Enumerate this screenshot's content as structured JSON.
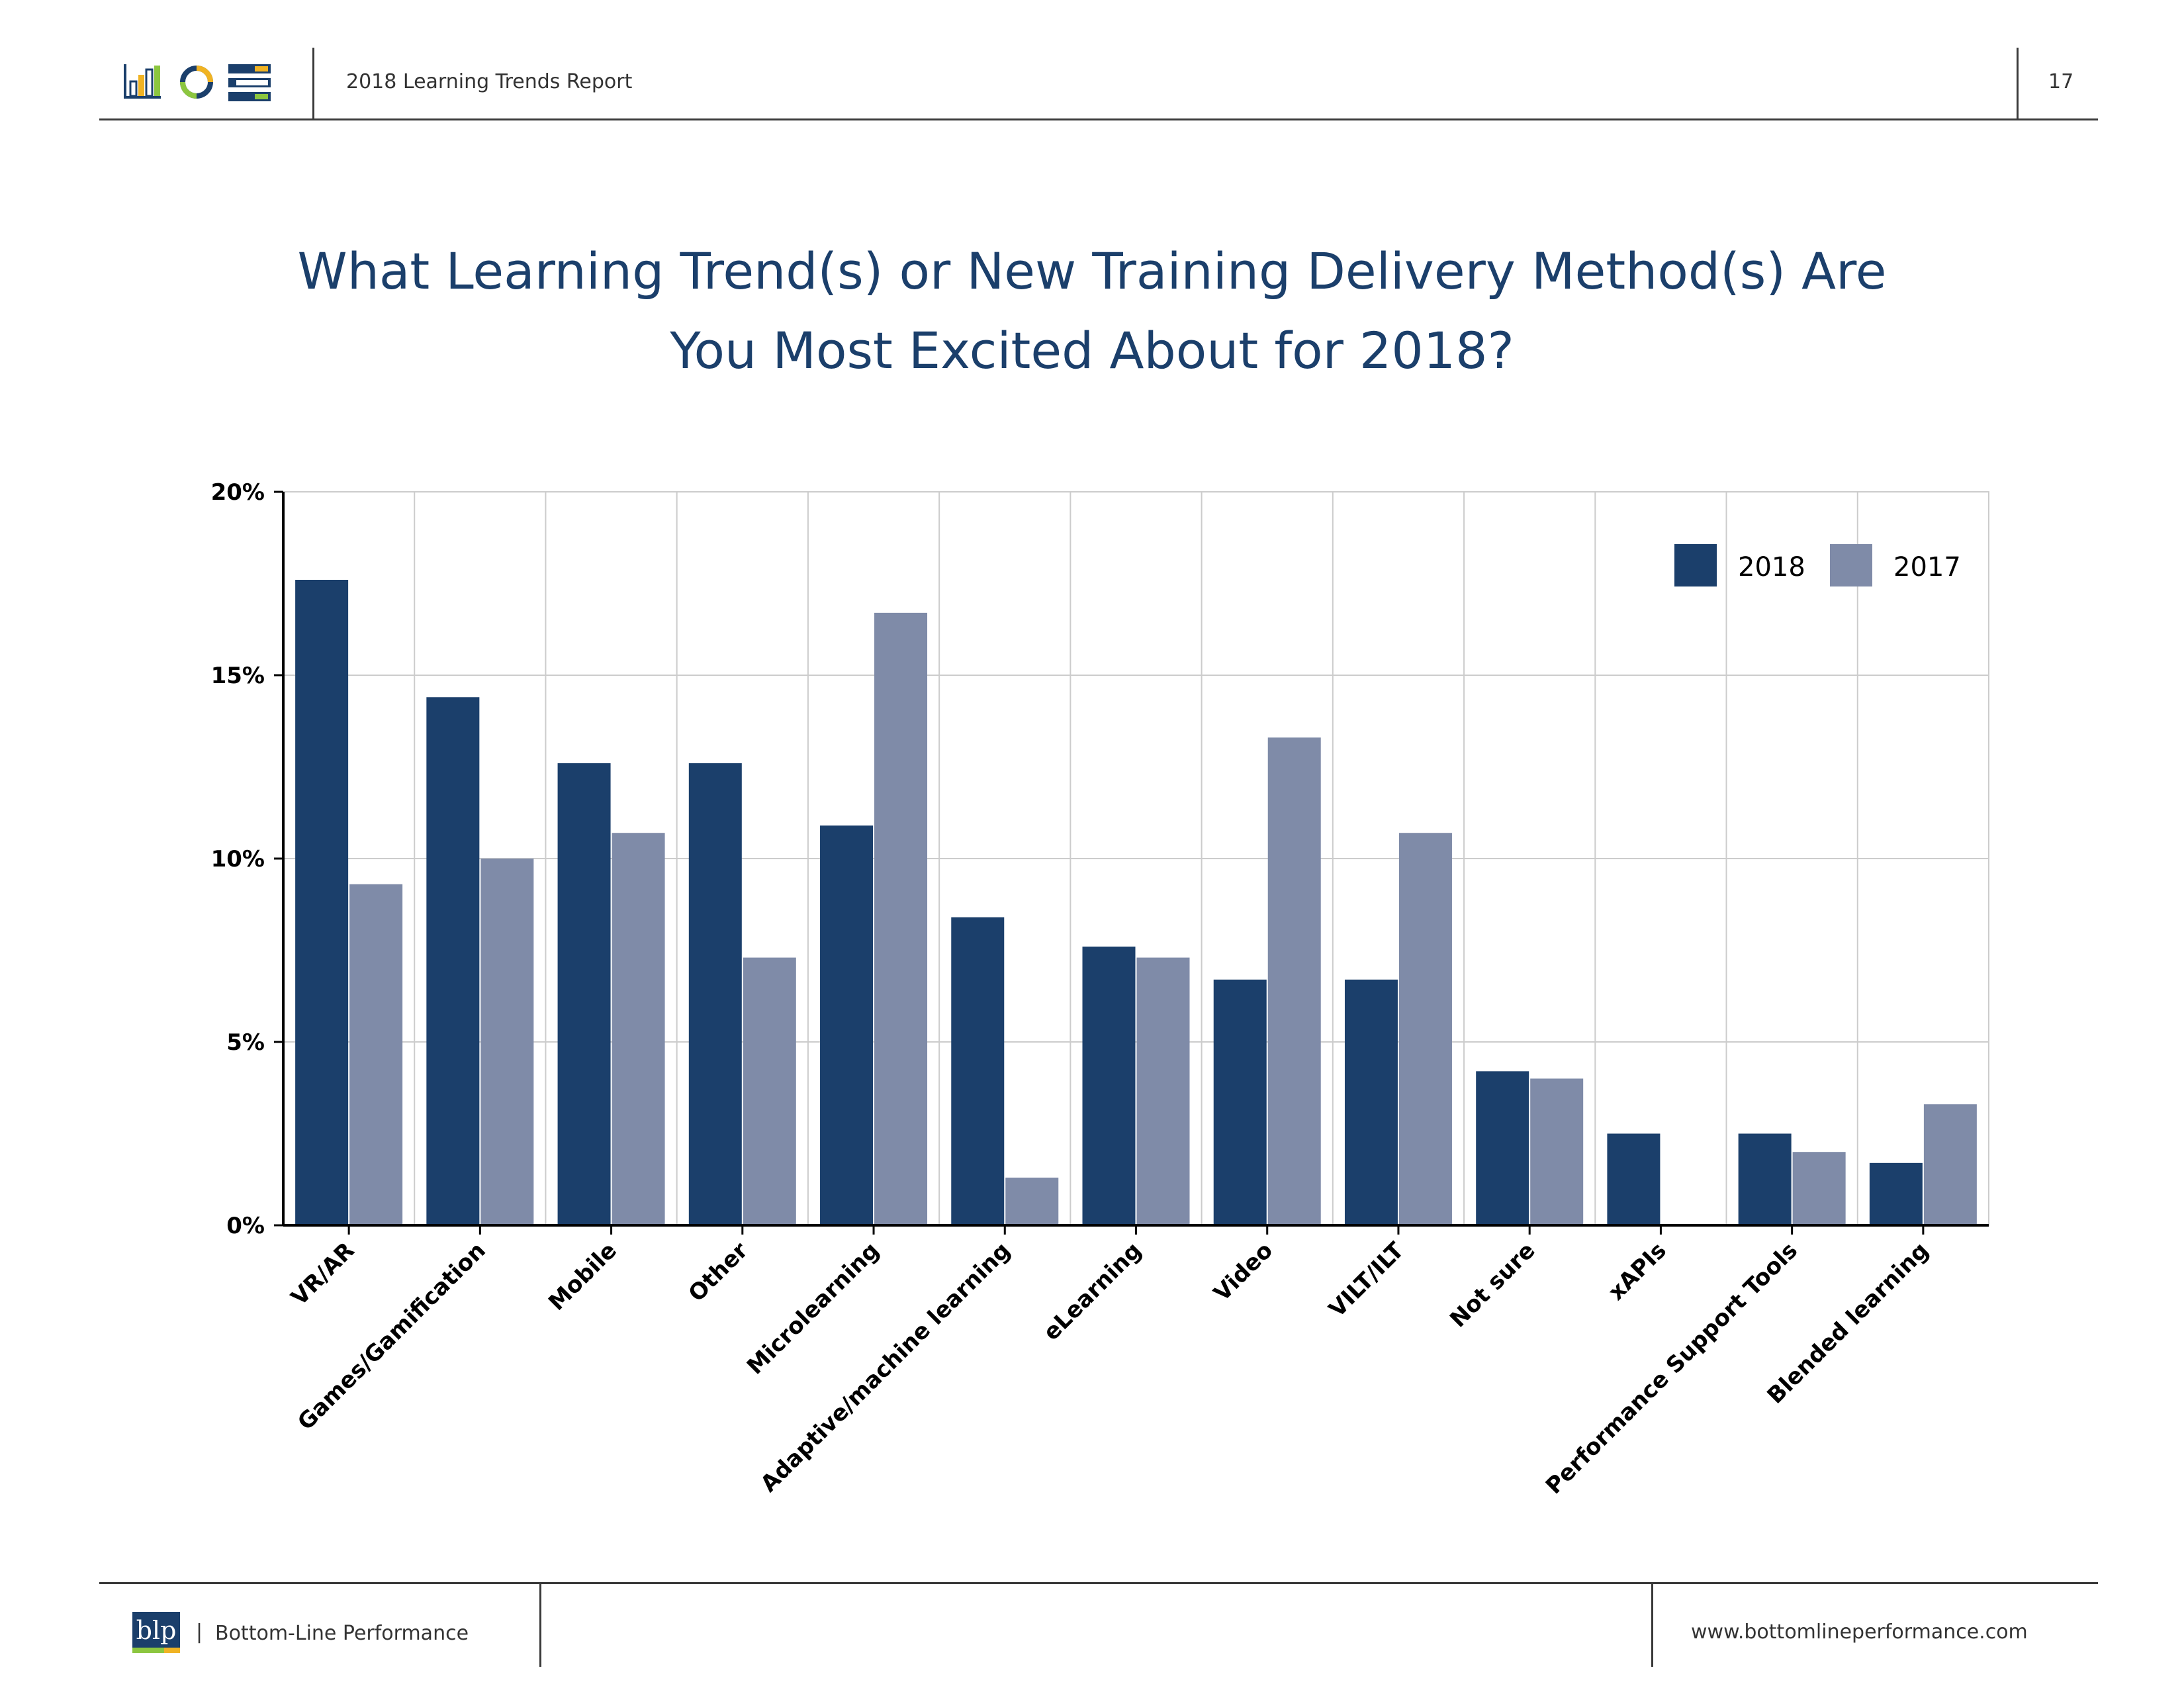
{
  "header": {
    "report_title": "2018 Learning Trends Report",
    "page_number": "17",
    "icons": [
      "bar-chart-icon",
      "donut-chart-icon",
      "list-icon"
    ]
  },
  "page_title": {
    "line1": "What Learning Trend(s) or New Training Delivery Method(s) Are",
    "line2": "You Most Excited About for 2018?"
  },
  "footer": {
    "logo_text": "blp",
    "separator": "|",
    "company": "Bottom-Line Performance",
    "url": "www.bottomlineperformance.com"
  },
  "colors": {
    "series_2018": "#1b3f6b",
    "series_2017": "#7f8ba8",
    "title": "#1b3f6b",
    "grid": "#cccccc"
  },
  "chart_data": {
    "type": "bar",
    "title": "",
    "xlabel": "",
    "ylabel": "",
    "ylim": [
      0,
      20
    ],
    "yticks": [
      0,
      5,
      10,
      15,
      20
    ],
    "ytick_labels": [
      "0%",
      "5%",
      "10%",
      "15%",
      "20%"
    ],
    "grid": true,
    "legend_position": "top-right",
    "categories": [
      "VR/AR",
      "Games/Gamification",
      "Mobile",
      "Other",
      "Microlearning",
      "Adaptive/machine learning",
      "eLearning",
      "Video",
      "VILT/ILT",
      "Not sure",
      "xAPIs",
      "Performance Support Tools",
      "Blended learning"
    ],
    "series": [
      {
        "name": "2018",
        "values": [
          17.6,
          14.4,
          12.6,
          12.6,
          10.9,
          8.4,
          7.6,
          6.7,
          6.7,
          4.2,
          2.5,
          2.5,
          1.7
        ]
      },
      {
        "name": "2017",
        "values": [
          9.3,
          10.0,
          10.7,
          7.3,
          16.7,
          1.3,
          7.3,
          13.3,
          10.7,
          4.0,
          0,
          2.0,
          3.3
        ]
      }
    ]
  }
}
